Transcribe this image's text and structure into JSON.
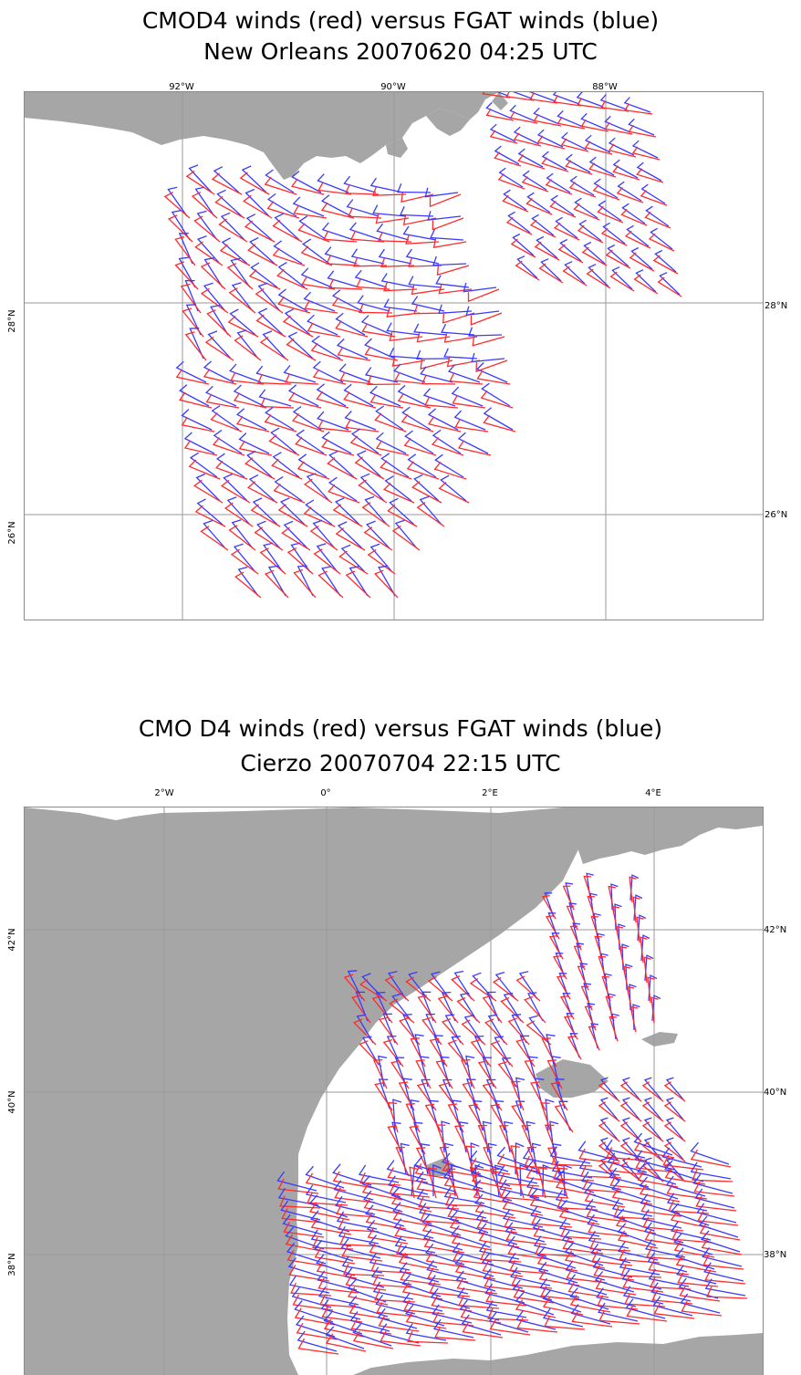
{
  "colors": {
    "cmod4": "#ff2a2a",
    "fgat": "#3a3aff",
    "land": "#a6a6a6",
    "sea": "#ffffff",
    "grid": "#9a9a9a"
  },
  "maps": [
    {
      "title_line1": "CMOD4 winds (red) versus FGAT winds (blue)",
      "title_line2": "New Orleans  20070620 04:25 UTC",
      "lon_ticks": [
        "92°W",
        "90°W",
        "88°W"
      ],
      "lat_ticks_left": [
        "28°N",
        "26°N"
      ],
      "lat_ticks_right": [
        "28°N",
        "26°N"
      ]
    },
    {
      "title_line1": "CMO D4 winds (red) versus FGAT winds (blue)",
      "title_line2": "Cierzo  20070704 22:15 UTC",
      "lon_ticks": [
        "2°W",
        "0°",
        "2°E",
        "4°E"
      ],
      "lat_ticks_left": [
        "42°N",
        "40°N",
        "38°N"
      ],
      "lat_ticks_right": [
        "42°N",
        "40°N",
        "38°N"
      ]
    }
  ]
}
